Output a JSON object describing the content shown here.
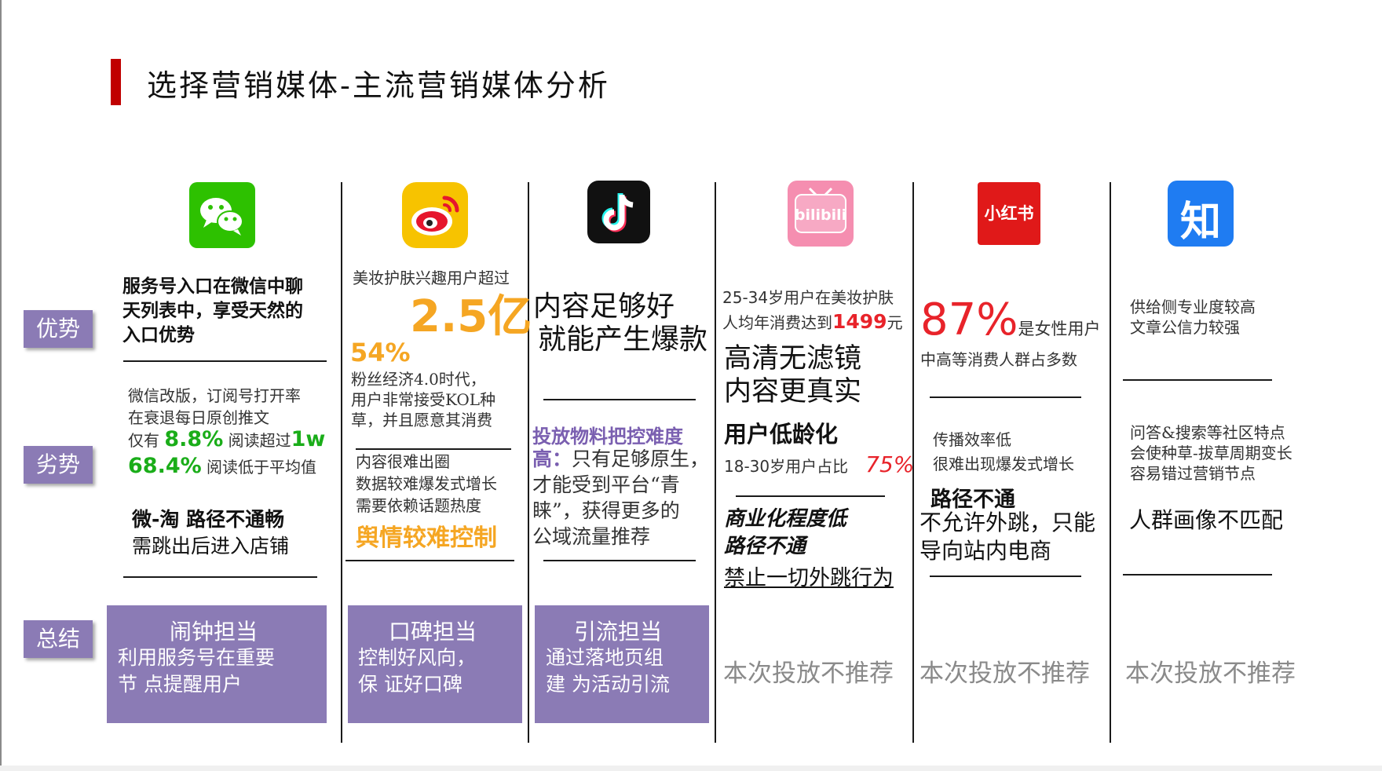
{
  "title": "选择营销媒体-主流营销媒体分析",
  "row_labels": {
    "advantage": "优势",
    "disadvantage": "劣势",
    "summary": "总结"
  },
  "colors": {
    "accent_red": "#c00000",
    "label_purple": "#8b7bb5",
    "orange": "#f5a623",
    "green": "#1aad19",
    "red": "#e8232a"
  },
  "wechat": {
    "logo": "wechat-icon",
    "adv": [
      "服务号入口在微信中聊",
      "天列表中，享受天然的",
      "入口优势"
    ],
    "dis1": [
      "微信改版，订阅号打开率",
      "在衰退每日原创推文"
    ],
    "dis_line1": {
      "pre": "仅有",
      "pct": "8.8%",
      "mid": "阅读超过",
      "big": "1w"
    },
    "dis_line2": {
      "pct": "68.4%",
      "post": "阅读低于平均值"
    },
    "dis_bold": "微-淘 路径不通畅",
    "dis_sub": "需跳出后进入店铺",
    "summary_title": "闹钟担当",
    "summary_lines": [
      "利用服务号在重要",
      "节 点提醒用户"
    ]
  },
  "weibo": {
    "logo": "weibo-icon",
    "adv_pre": "美妆护肤兴趣用户超过",
    "adv_big": "2.5亿",
    "adv_pct": "54%",
    "adv_lines": [
      "粉丝经济4.0时代，",
      "用户非常接受KOL种",
      "草，并且愿意其消费"
    ],
    "dis_lines": [
      "内容很难出圈",
      "数据较难爆发式增长",
      "需要依赖话题热度"
    ],
    "dis_highlight": "舆情较难控制",
    "summary_title": "口碑担当",
    "summary_lines": [
      "控制好风向，",
      "保 证好口碑"
    ]
  },
  "douyin": {
    "logo": "tiktok-icon",
    "adv_lines": [
      "内容足够好",
      "就能产生爆款"
    ],
    "dis_purple": "投放物料把控难度",
    "dis_purple2": "高：",
    "dis_first": "只有足够原生，",
    "dis_lines": [
      "才能受到平台“青",
      "睐”，获得更多的",
      "公域流量推荐"
    ],
    "summary_title": "引流担当",
    "summary_lines": [
      "通过落地页组",
      "建 为活动引流"
    ]
  },
  "bilibili": {
    "logo": "bilibili-icon",
    "adv_pre": "25-34岁用户在美妆护肤",
    "adv_line2_pre": "人均年消费达到",
    "adv_line2_num": "1499",
    "adv_line2_post": "元",
    "adv_big_lines": [
      "高清无滤镜",
      "内容更真实"
    ],
    "adv_bold": "用户低龄化",
    "adv_age": "18-30岁用户占比",
    "adv_age_pct": "75%",
    "dis_italic_lines": [
      "商业化程度低",
      "路径不通"
    ],
    "dis_underline": "禁止一切外跳行为",
    "recommend": "本次投放不推荐"
  },
  "xiaohongshu": {
    "logo": "xiaohongshu-icon",
    "logo_text": "小红书",
    "adv_pct": "87%",
    "adv_post": "是女性用户",
    "adv_sub": "中高等消费人群占多数",
    "dis_lines": [
      "传播效率低",
      "很难出现爆发式增长"
    ],
    "dis_bold": "路径不通",
    "dis_more": [
      "不允许外跳，只能",
      "导向站内电商"
    ],
    "recommend": "本次投放不推荐"
  },
  "zhihu": {
    "logo": "zhihu-icon",
    "logo_text": "知",
    "adv_lines": [
      "供给侧专业度较高",
      "文章公信力较强"
    ],
    "dis_lines": [
      "问答&搜索等社区特点",
      "会使种草-拔草周期变长",
      "容易错过营销节点"
    ],
    "dis_big": "人群画像不匹配",
    "recommend": "本次投放不推荐"
  }
}
